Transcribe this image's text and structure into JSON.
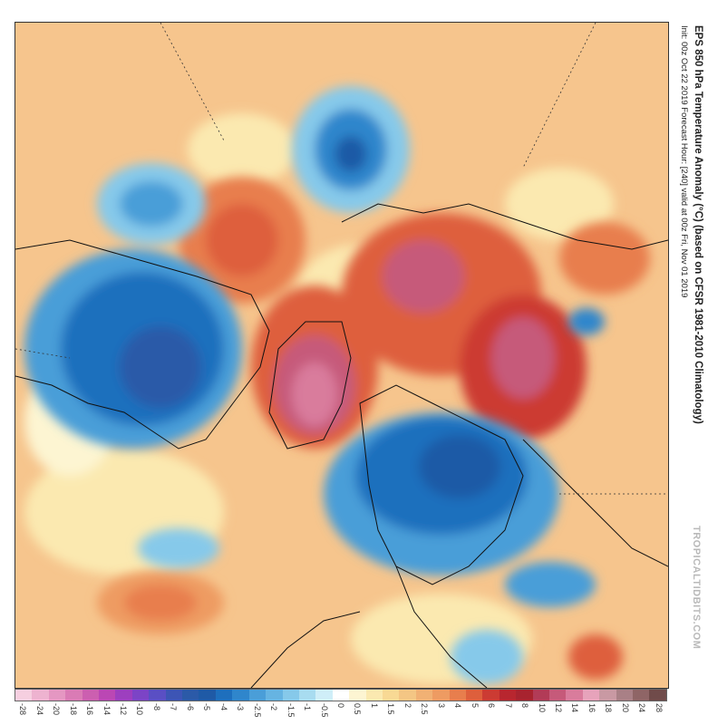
{
  "title": "EPS 850 hPa Temperature Anomaly (°C) (based on CFSR 1981-2010 Climatology)",
  "subtitle": "Init: 00z Oct 22 2019   Forecast Hour: [240]   valid at 00z Fri, Nov 01 2019",
  "brand": "TROPICALTIDBITS.COM",
  "legend": {
    "labels": [
      "-28",
      "-24",
      "-20",
      "-18",
      "-16",
      "-14",
      "-12",
      "-10",
      "-8",
      "-7",
      "-6",
      "-5",
      "-4",
      "-3",
      "-2.5",
      "-2",
      "-1.5",
      "-1",
      "-0.5",
      "0",
      "0.5",
      "1",
      "1.5",
      "2",
      "2.5",
      "3",
      "4",
      "5",
      "6",
      "7",
      "8",
      "10",
      "12",
      "14",
      "16",
      "18",
      "20",
      "24",
      "28"
    ],
    "colors": [
      "#f6cfe0",
      "#eeb3d0",
      "#e597c2",
      "#da7bb5",
      "#cc5fb0",
      "#bb47b4",
      "#9d3fbf",
      "#7c44c6",
      "#5a4fc4",
      "#3d55b5",
      "#2b5aa8",
      "#1f5aa6",
      "#1e6fbd",
      "#2f86cc",
      "#4a9ed8",
      "#66b4e2",
      "#86c9ea",
      "#a8dcf0",
      "#cfeef8",
      "#ffffff",
      "#fdf5d2",
      "#fbe9b0",
      "#f8d994",
      "#f4c684",
      "#f1b174",
      "#ee9b62",
      "#e87e4d",
      "#de5f3c",
      "#cc3b33",
      "#b8262f",
      "#a8232f",
      "#b23b57",
      "#c65a7a",
      "#d97c9c",
      "#e7a3bb",
      "#c999a3",
      "#a98086",
      "#8f6566",
      "#704b4a"
    ]
  },
  "map": {
    "background_color": "#f6c58d",
    "anomalies": [
      {
        "name": "cold-pacific-west",
        "color": "#4a9ed8"
      },
      {
        "name": "cold-pacific-north",
        "color": "#2f86cc"
      },
      {
        "name": "cold-north-america",
        "color": "#1f5aa6"
      },
      {
        "name": "cold-scandinavia",
        "color": "#1e6fbd"
      },
      {
        "name": "warm-greenland",
        "color": "#d97c9c"
      },
      {
        "name": "warm-siberia",
        "color": "#c65a7a"
      },
      {
        "name": "warm-alaska",
        "color": "#de5f3c"
      }
    ]
  }
}
